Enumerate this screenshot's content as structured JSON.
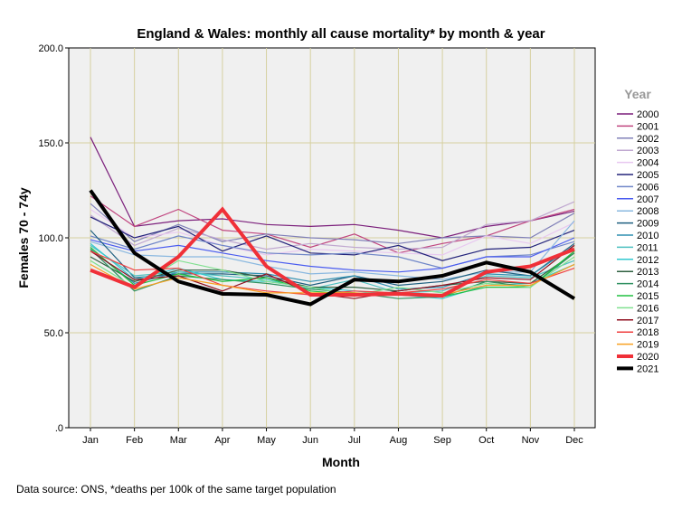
{
  "chart_data": {
    "type": "line",
    "title": "England & Wales: monthly all cause mortality* by month & year",
    "xlabel": "Month",
    "ylabel": "Females 70 - 74y",
    "ylim": [
      0,
      200
    ],
    "yticks": [
      0,
      50,
      100,
      150,
      200
    ],
    "ytick_labels": [
      ".0",
      "50.0",
      "100.0",
      "150.0",
      "200.0"
    ],
    "grid": true,
    "legend_title": "Year",
    "legend_position": "right",
    "categories": [
      "Jan",
      "Feb",
      "Mar",
      "Apr",
      "May",
      "Jun",
      "Jul",
      "Aug",
      "Sep",
      "Oct",
      "Nov",
      "Dec"
    ],
    "series": [
      {
        "name": "2000",
        "color": "#7b1f7b",
        "bold": false,
        "values": [
          153,
          106,
          109,
          110,
          107,
          106,
          107,
          104,
          100,
          106,
          109,
          114
        ]
      },
      {
        "name": "2001",
        "color": "#c0457f",
        "bold": false,
        "values": [
          122,
          106,
          115,
          104,
          102,
          95,
          102,
          92,
          97,
          101,
          109,
          115
        ]
      },
      {
        "name": "2002",
        "color": "#8080b8",
        "bold": false,
        "values": [
          118,
          98,
          107,
          98,
          102,
          100,
          99,
          97,
          100,
          101,
          100,
          113
        ]
      },
      {
        "name": "2003",
        "color": "#c0a8d0",
        "bold": false,
        "values": [
          112,
          96,
          105,
          99,
          94,
          97,
          95,
          94,
          95,
          107,
          109,
          119
        ]
      },
      {
        "name": "2004",
        "color": "#e8c8f0",
        "bold": false,
        "values": [
          115,
          100,
          103,
          96,
          91,
          94,
          93,
          92,
          91,
          101,
          97,
          108
        ]
      },
      {
        "name": "2005",
        "color": "#23237a",
        "bold": false,
        "values": [
          111,
          100,
          106,
          93,
          101,
          92,
          91,
          96,
          88,
          94,
          95,
          104
        ]
      },
      {
        "name": "2006",
        "color": "#6f86c8",
        "bold": false,
        "values": [
          101,
          94,
          101,
          96,
          92,
          91,
          92,
          90,
          84,
          90,
          91,
          98
        ]
      },
      {
        "name": "2007",
        "color": "#4a5cf0",
        "bold": false,
        "values": [
          99,
          93,
          96,
          92,
          88,
          85,
          83,
          82,
          84,
          90,
          90,
          100
        ]
      },
      {
        "name": "2008",
        "color": "#8ab8e0",
        "bold": false,
        "values": [
          98,
          91,
          90,
          90,
          85,
          81,
          82,
          80,
          78,
          82,
          82,
          109
        ]
      },
      {
        "name": "2009",
        "color": "#1f6080",
        "bold": false,
        "values": [
          104,
          79,
          81,
          81,
          80,
          75,
          80,
          75,
          77,
          83,
          80,
          97
        ]
      },
      {
        "name": "2010",
        "color": "#2f8fb0",
        "bold": false,
        "values": [
          94,
          76,
          82,
          82,
          81,
          77,
          80,
          73,
          74,
          81,
          80,
          96
        ]
      },
      {
        "name": "2011",
        "color": "#4cc0c0",
        "bold": false,
        "values": [
          96,
          80,
          82,
          80,
          78,
          73,
          78,
          71,
          72,
          80,
          79,
          88
        ]
      },
      {
        "name": "2012",
        "color": "#30c8d0",
        "bold": false,
        "values": [
          97,
          78,
          84,
          78,
          77,
          74,
          72,
          70,
          68,
          75,
          76,
          86
        ]
      },
      {
        "name": "2013",
        "color": "#2f6040",
        "bold": false,
        "values": [
          90,
          77,
          83,
          83,
          79,
          74,
          74,
          72,
          75,
          77,
          76,
          92
        ]
      },
      {
        "name": "2014",
        "color": "#2f9060",
        "bold": false,
        "values": [
          94,
          72,
          80,
          78,
          76,
          73,
          71,
          68,
          69,
          77,
          74,
          92
        ]
      },
      {
        "name": "2015",
        "color": "#20c040",
        "bold": false,
        "values": [
          95,
          75,
          81,
          77,
          79,
          72,
          70,
          70,
          69,
          74,
          74,
          93
        ]
      },
      {
        "name": "2016",
        "color": "#80e090",
        "bold": false,
        "values": [
          88,
          74,
          88,
          83,
          77,
          74,
          70,
          74,
          71,
          76,
          74,
          90
        ]
      },
      {
        "name": "2017",
        "color": "#901020",
        "bold": false,
        "values": [
          93,
          78,
          80,
          72,
          81,
          71,
          68,
          72,
          75,
          79,
          78,
          96
        ]
      },
      {
        "name": "2018",
        "color": "#f04040",
        "bold": false,
        "values": [
          93,
          83,
          84,
          75,
          72,
          70,
          72,
          71,
          73,
          78,
          76,
          84
        ]
      },
      {
        "name": "2019",
        "color": "#f8a020",
        "bold": false,
        "values": [
          86,
          73,
          79,
          75,
          71,
          71,
          71,
          70,
          70,
          75,
          75,
          86
        ]
      },
      {
        "name": "2020",
        "color": "#f03038",
        "bold": true,
        "values": [
          83,
          74,
          90,
          115,
          85,
          70,
          70,
          70.5,
          69.5,
          82,
          85,
          94
        ]
      },
      {
        "name": "2021",
        "color": "#000000",
        "bold": true,
        "values": [
          125,
          92,
          77,
          70.5,
          70,
          65,
          78,
          77,
          80,
          87,
          82,
          68
        ]
      }
    ]
  },
  "footnote": "Data source: ONS, *deaths per 100k of the same target population"
}
